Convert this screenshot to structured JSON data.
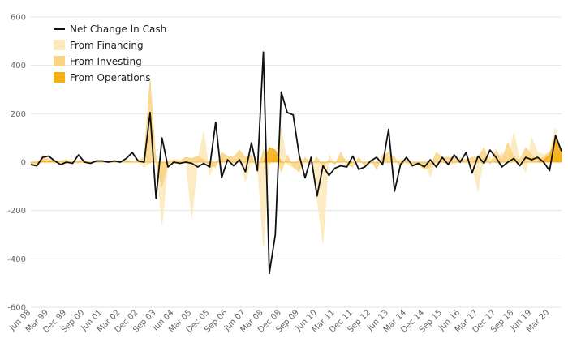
{
  "chart_data": {
    "type": "area",
    "ylim": [
      -600,
      600
    ],
    "yticks": [
      600,
      400,
      200,
      0,
      -200,
      -400,
      -600
    ],
    "xtick_labels": [
      "Jun 98",
      "Mar 99",
      "Dec 99",
      "Sep 00",
      "Jun 01",
      "Mar 02",
      "Dec 02",
      "Sep 03",
      "Jun 04",
      "Mar 05",
      "Dec 05",
      "Sep 06",
      "Jun 07",
      "Mar 08",
      "Dec 08",
      "Sep 09",
      "Jun 10",
      "Mar 11",
      "Dec 11",
      "Sep 12",
      "Jun 13",
      "Mar 14",
      "Dec 14",
      "Sep 15",
      "Jun 16",
      "Mar 17",
      "Dec 17",
      "Sep 18",
      "Jun 19",
      "Mar 20"
    ],
    "x": [
      "Jun 98",
      "Sep 98",
      "Dec 98",
      "Mar 99",
      "Jun 99",
      "Sep 99",
      "Dec 99",
      "Mar 00",
      "Jun 00",
      "Sep 00",
      "Dec 00",
      "Mar 01",
      "Jun 01",
      "Sep 01",
      "Dec 01",
      "Mar 02",
      "Jun 02",
      "Sep 02",
      "Dec 02",
      "Mar 03",
      "Jun 03",
      "Sep 03",
      "Dec 03",
      "Mar 04",
      "Jun 04",
      "Sep 04",
      "Dec 04",
      "Mar 05",
      "Jun 05",
      "Sep 05",
      "Dec 05",
      "Mar 06",
      "Jun 06",
      "Sep 06",
      "Dec 06",
      "Mar 07",
      "Jun 07",
      "Sep 07",
      "Dec 07",
      "Mar 08",
      "Jun 08",
      "Sep 08",
      "Dec 08",
      "Mar 09",
      "Jun 09",
      "Sep 09",
      "Dec 09",
      "Mar 10",
      "Jun 10",
      "Sep 10",
      "Dec 10",
      "Mar 11",
      "Jun 11",
      "Sep 11",
      "Dec 11",
      "Mar 12",
      "Jun 12",
      "Sep 12",
      "Dec 12",
      "Mar 13",
      "Jun 13",
      "Sep 13",
      "Dec 13",
      "Mar 14",
      "Jun 14",
      "Sep 14",
      "Dec 14",
      "Mar 15",
      "Jun 15",
      "Sep 15",
      "Dec 15",
      "Mar 16",
      "Jun 16",
      "Sep 16",
      "Dec 16",
      "Mar 17",
      "Jun 17",
      "Sep 17",
      "Dec 17",
      "Mar 18",
      "Jun 18",
      "Sep 18",
      "Dec 18",
      "Mar 19",
      "Jun 19",
      "Sep 19",
      "Dec 19",
      "Mar 20",
      "Jun 20",
      "Sep 20"
    ],
    "series": [
      {
        "name": "From Financing",
        "color": "#fce8b8",
        "values": [
          0,
          -5,
          30,
          15,
          -5,
          5,
          0,
          0,
          -5,
          10,
          0,
          0,
          0,
          0,
          0,
          0,
          5,
          5,
          0,
          -20,
          -5,
          30,
          -260,
          10,
          5,
          -10,
          10,
          -230,
          10,
          125,
          -55,
          0,
          20,
          10,
          0,
          20,
          -80,
          10,
          0,
          -350,
          20,
          20,
          140,
          -10,
          -20,
          20,
          5,
          5,
          -150,
          -335,
          30,
          -10,
          20,
          10,
          0,
          0,
          0,
          -5,
          -10,
          10,
          -5,
          0,
          10,
          -5,
          -20,
          -10,
          0,
          -60,
          10,
          0,
          -5,
          -10,
          20,
          0,
          -10,
          -120,
          30,
          20,
          -5,
          40,
          0,
          120,
          10,
          -40,
          100,
          40,
          30,
          40,
          140,
          20
        ]
      },
      {
        "name": "From Investing",
        "color": "#fad483",
        "values": [
          -10,
          -20,
          15,
          10,
          5,
          5,
          10,
          0,
          5,
          5,
          -5,
          5,
          5,
          0,
          5,
          0,
          5,
          5,
          5,
          20,
          340,
          0,
          -100,
          -10,
          10,
          5,
          20,
          15,
          25,
          10,
          -20,
          -20,
          40,
          25,
          20,
          50,
          20,
          30,
          -40,
          50,
          -10,
          40,
          -40,
          30,
          -20,
          -40,
          20,
          -10,
          20,
          -20,
          10,
          -10,
          40,
          -10,
          -20,
          20,
          -20,
          10,
          -30,
          30,
          40,
          20,
          -20,
          10,
          -10,
          -10,
          -30,
          -20,
          40,
          20,
          20,
          20,
          10,
          10,
          20,
          20,
          60,
          -10,
          50,
          10,
          80,
          20,
          10,
          60,
          30,
          10,
          20,
          40,
          80,
          20
        ]
      },
      {
        "name": "From Operations",
        "color": "#f5ae13",
        "values": [
          0,
          0,
          5,
          5,
          0,
          0,
          0,
          0,
          0,
          0,
          0,
          0,
          0,
          0,
          0,
          0,
          0,
          0,
          0,
          0,
          0,
          0,
          0,
          0,
          0,
          0,
          0,
          0,
          0,
          0,
          0,
          0,
          0,
          0,
          0,
          0,
          0,
          0,
          0,
          0,
          60,
          50,
          0,
          0,
          0,
          0,
          0,
          0,
          0,
          0,
          0,
          0,
          0,
          0,
          0,
          0,
          0,
          0,
          0,
          0,
          0,
          0,
          0,
          0,
          0,
          0,
          0,
          0,
          0,
          0,
          0,
          0,
          0,
          0,
          0,
          0,
          0,
          0,
          0,
          0,
          0,
          0,
          0,
          0,
          0,
          0,
          10,
          30,
          100,
          40
        ]
      },
      {
        "name": "Net Change In Cash",
        "color": "#111111",
        "values": [
          -10,
          -15,
          20,
          25,
          5,
          -10,
          0,
          -5,
          30,
          0,
          -5,
          5,
          5,
          0,
          5,
          0,
          15,
          40,
          5,
          0,
          205,
          -150,
          100,
          -20,
          0,
          -5,
          0,
          -5,
          -20,
          -5,
          -20,
          165,
          -65,
          10,
          -15,
          10,
          -40,
          80,
          -35,
          455,
          -460,
          -300,
          290,
          205,
          195,
          30,
          -65,
          20,
          -140,
          -15,
          -55,
          -25,
          -15,
          -20,
          25,
          -30,
          -20,
          5,
          20,
          -10,
          135,
          -120,
          -10,
          20,
          -15,
          -5,
          -20,
          10,
          -20,
          20,
          -10,
          30,
          0,
          40,
          -45,
          25,
          -5,
          50,
          20,
          -20,
          0,
          15,
          -15,
          20,
          10,
          20,
          0,
          -35,
          110,
          45
        ]
      }
    ],
    "legend_order": [
      "Net Change In Cash",
      "From Financing",
      "From Investing",
      "From Operations"
    ],
    "legend_position": "top-left",
    "grid": true
  }
}
